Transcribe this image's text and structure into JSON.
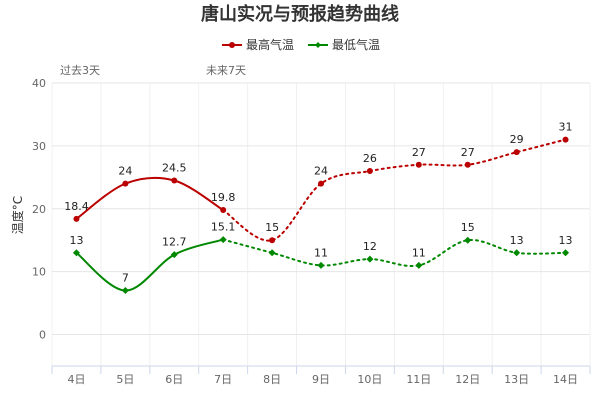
{
  "chart_data": {
    "type": "line",
    "title": "唐山实况与预报趋势曲线",
    "xlabel": "",
    "ylabel": "温度°C",
    "ylim": [
      -5,
      40
    ],
    "yticks": [
      0,
      10,
      20,
      30,
      40
    ],
    "categories": [
      "4日",
      "5日",
      "6日",
      "7日",
      "8日",
      "9日",
      "10日",
      "11日",
      "12日",
      "13日",
      "14日"
    ],
    "period_labels": {
      "past": "过去3天",
      "future": "未来7天"
    },
    "observed_until_index": 3,
    "series": [
      {
        "name": "最高气温",
        "color": "#bb0000",
        "values": [
          18.4,
          24,
          24.5,
          19.8,
          15,
          24,
          26,
          27,
          27,
          29,
          31
        ],
        "labels": [
          "18.4",
          "24",
          "24.5",
          "19.8",
          "15",
          "24",
          "26",
          "27",
          "27",
          "29",
          "31"
        ]
      },
      {
        "name": "最低气温",
        "color": "#008800",
        "values": [
          13,
          7,
          12.7,
          15.1,
          13,
          11,
          12,
          11,
          15,
          13,
          13
        ],
        "labels": [
          "13",
          "7",
          "12.7",
          "15.1",
          "",
          "11",
          "12",
          "11",
          "15",
          "13",
          "13"
        ]
      }
    ],
    "legend_position": "top-center",
    "grid": true
  }
}
